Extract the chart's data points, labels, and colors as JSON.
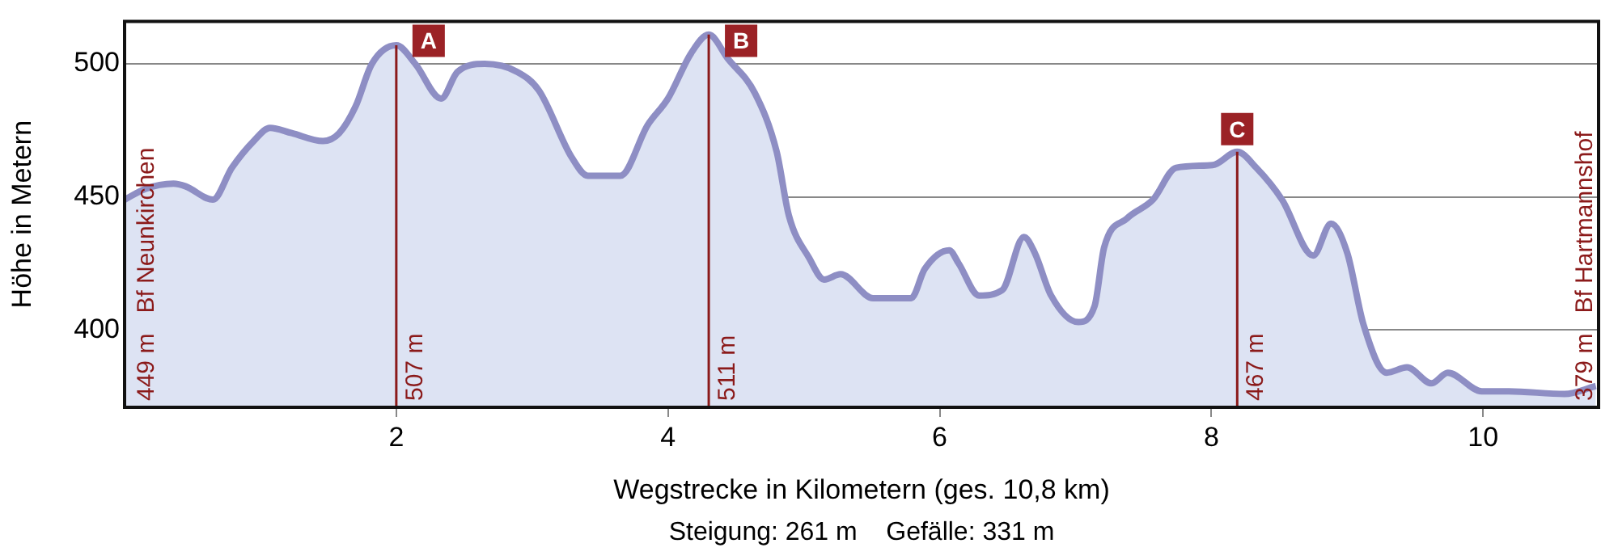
{
  "chart_data": {
    "type": "area",
    "xlabel": "Wegstrecke in Kilometern (ges. 10,8 km)",
    "ylabel": "Höhe in Metern",
    "x": [
      0,
      0.15,
      0.36,
      0.45,
      0.65,
      0.79,
      0.95,
      1.07,
      1.23,
      1.46,
      1.58,
      1.7,
      1.82,
      2.0,
      2.14,
      2.33,
      2.45,
      2.65,
      2.89,
      3.05,
      3.29,
      3.41,
      3.65,
      3.85,
      4.0,
      4.17,
      4.3,
      4.44,
      4.64,
      4.8,
      4.89,
      5.04,
      5.15,
      5.27,
      5.51,
      5.79,
      5.89,
      6.07,
      6.14,
      6.29,
      6.46,
      6.62,
      6.7,
      6.82,
      7.02,
      7.14,
      7.21,
      7.38,
      7.57,
      7.74,
      8.01,
      8.19,
      8.33,
      8.52,
      8.75,
      8.88,
      9.0,
      9.12,
      9.29,
      9.44,
      9.62,
      9.74,
      9.99,
      10.19,
      10.6,
      10.83
    ],
    "series": [
      {
        "color": "#8e8ec4",
        "values": [
          449,
          453,
          455,
          454,
          449,
          461,
          471,
          476,
          474,
          471,
          474,
          484,
          500,
          507,
          500,
          487,
          497,
          500,
          497,
          490,
          465,
          458,
          458,
          477,
          487,
          504,
          511,
          502,
          489,
          467,
          443,
          427,
          419,
          421,
          412,
          412,
          423,
          430,
          425,
          413,
          415,
          435,
          429,
          413,
          403,
          409,
          431,
          442,
          449,
          461,
          462,
          467,
          461,
          449,
          428,
          440,
          429,
          402,
          384,
          386,
          380,
          384,
          377,
          377,
          376,
          379
        ]
      }
    ],
    "xlim": [
      0,
      10.85
    ],
    "ylim": [
      371,
      516
    ],
    "xticks": [
      2,
      4,
      6,
      8,
      10
    ],
    "yticks": [
      400,
      450,
      500
    ],
    "grid": "y",
    "legend": false,
    "marker": "none",
    "ref_lines": [
      {
        "axis": "x",
        "value": 2,
        "label": "507 m",
        "color": "#8b1a1a"
      },
      {
        "axis": "x",
        "value": 4.3,
        "label": "511 m",
        "color": "#8b1a1a"
      },
      {
        "axis": "x",
        "value": 8.19,
        "label": "467 m",
        "color": "#8b1a1a"
      }
    ],
    "annotations": [
      "449 m   Bf Neunkirchen",
      "379 m   Bf Hartmannshof",
      "Steigung: 261 m    Gefälle: 331 m",
      {
        "text": "A",
        "x": 2,
        "y": 507
      },
      {
        "text": "B",
        "x": 4.3,
        "y": 511
      },
      {
        "text": "C",
        "x": 8.19,
        "y": 467
      }
    ]
  }
}
